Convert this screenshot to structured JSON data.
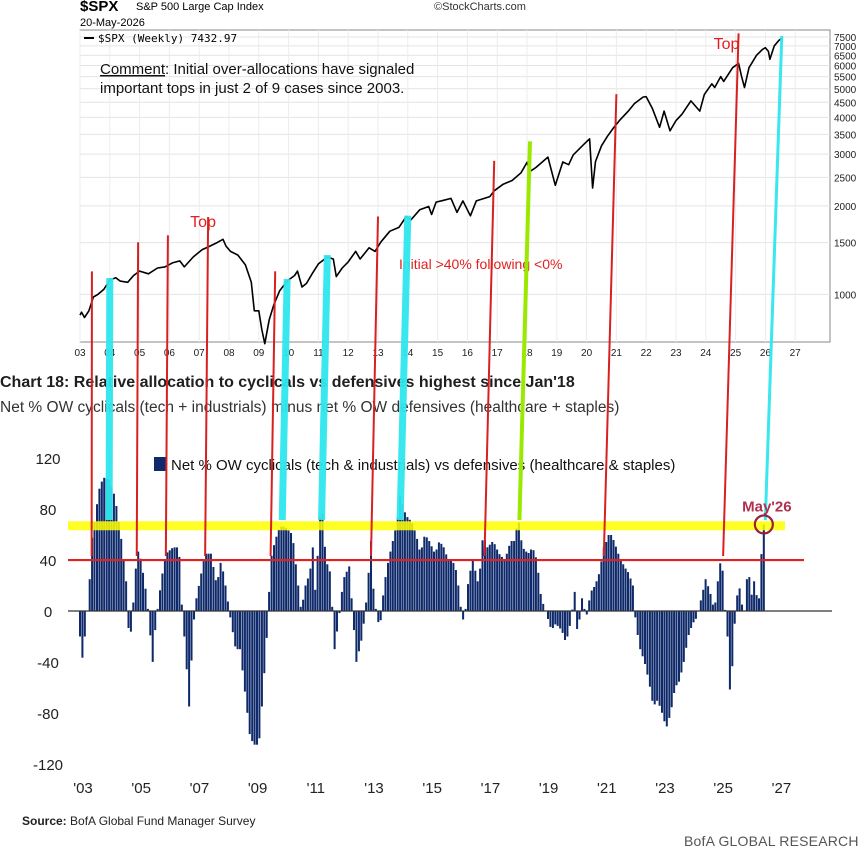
{
  "header": {
    "ticker": "$SPX",
    "name": "S&P 500 Large Cap Index",
    "date": "20-May-2026",
    "source": "©StockCharts.com"
  },
  "chart_data": [
    {
      "type": "line",
      "legend": "$SPX (Weekly) 7432.97",
      "log_scale": true,
      "ylim": [
        700,
        7800
      ],
      "y_ticks": [
        1000,
        1500,
        2000,
        2500,
        3000,
        3500,
        4000,
        4500,
        5000,
        5500,
        6000,
        6500,
        7000,
        7500
      ],
      "x_ticks": [
        "03",
        "04",
        "05",
        "06",
        "07",
        "08",
        "09",
        "10",
        "11",
        "12",
        "13",
        "14",
        "15",
        "16",
        "17",
        "18",
        "19",
        "20",
        "21",
        "22",
        "23",
        "24",
        "25",
        "26",
        "27"
      ],
      "x_range": [
        2003.0,
        2027.8
      ],
      "comment": {
        "label": "Comment",
        "text1": ": Initial over-allocations have signaled",
        "text2": "important tops in just 2 of 9 cases since 2003."
      },
      "annotations": [
        {
          "text": "Top",
          "x": 2007.1,
          "y": 1620
        },
        {
          "text": "Top",
          "x": 2025.0,
          "y": 7050
        },
        {
          "text": "Initial >40% following <0%",
          "x": 2018.1,
          "y": 1250
        }
      ],
      "points": [
        [
          2003.0,
          850
        ],
        [
          2003.05,
          870
        ],
        [
          2003.15,
          835
        ],
        [
          2003.3,
          880
        ],
        [
          2003.45,
          980
        ],
        [
          2003.6,
          1000
        ],
        [
          2003.8,
          1040
        ],
        [
          2004.0,
          1120
        ],
        [
          2004.2,
          1140
        ],
        [
          2004.35,
          1110
        ],
        [
          2004.6,
          1100
        ],
        [
          2004.8,
          1160
        ],
        [
          2005.0,
          1200
        ],
        [
          2005.3,
          1175
        ],
        [
          2005.6,
          1230
        ],
        [
          2005.85,
          1240
        ],
        [
          2006.1,
          1280
        ],
        [
          2006.35,
          1300
        ],
        [
          2006.5,
          1240
        ],
        [
          2006.8,
          1340
        ],
        [
          2007.1,
          1420
        ],
        [
          2007.3,
          1450
        ],
        [
          2007.6,
          1500
        ],
        [
          2007.8,
          1540
        ],
        [
          2007.9,
          1460
        ],
        [
          2008.05,
          1400
        ],
        [
          2008.3,
          1360
        ],
        [
          2008.55,
          1260
        ],
        [
          2008.75,
          1100
        ],
        [
          2008.85,
          880
        ],
        [
          2009.0,
          880
        ],
        [
          2009.1,
          760
        ],
        [
          2009.2,
          680
        ],
        [
          2009.35,
          820
        ],
        [
          2009.5,
          920
        ],
        [
          2009.7,
          1030
        ],
        [
          2009.95,
          1110
        ],
        [
          2010.2,
          1160
        ],
        [
          2010.3,
          1200
        ],
        [
          2010.45,
          1060
        ],
        [
          2010.6,
          1090
        ],
        [
          2010.8,
          1180
        ],
        [
          2011.0,
          1270
        ],
        [
          2011.3,
          1340
        ],
        [
          2011.5,
          1320
        ],
        [
          2011.6,
          1150
        ],
        [
          2011.8,
          1230
        ],
        [
          2012.0,
          1290
        ],
        [
          2012.25,
          1400
        ],
        [
          2012.4,
          1320
        ],
        [
          2012.7,
          1440
        ],
        [
          2012.9,
          1400
        ],
        [
          2013.1,
          1510
        ],
        [
          2013.4,
          1640
        ],
        [
          2013.7,
          1690
        ],
        [
          2013.95,
          1840
        ],
        [
          2014.1,
          1790
        ],
        [
          2014.4,
          1940
        ],
        [
          2014.7,
          1990
        ],
        [
          2014.8,
          1870
        ],
        [
          2014.95,
          2060
        ],
        [
          2015.2,
          2090
        ],
        [
          2015.45,
          2120
        ],
        [
          2015.65,
          1900
        ],
        [
          2015.85,
          2080
        ],
        [
          2016.1,
          1850
        ],
        [
          2016.3,
          2080
        ],
        [
          2016.5,
          2110
        ],
        [
          2016.75,
          2150
        ],
        [
          2016.9,
          2250
        ],
        [
          2017.2,
          2370
        ],
        [
          2017.5,
          2440
        ],
        [
          2017.8,
          2590
        ],
        [
          2018.0,
          2810
        ],
        [
          2018.1,
          2620
        ],
        [
          2018.3,
          2700
        ],
        [
          2018.7,
          2930
        ],
        [
          2018.95,
          2350
        ],
        [
          2019.2,
          2820
        ],
        [
          2019.4,
          2760
        ],
        [
          2019.55,
          2980
        ],
        [
          2019.9,
          3230
        ],
        [
          2020.1,
          3380
        ],
        [
          2020.2,
          2300
        ],
        [
          2020.3,
          2830
        ],
        [
          2020.5,
          3200
        ],
        [
          2020.7,
          3450
        ],
        [
          2020.9,
          3680
        ],
        [
          2021.1,
          3900
        ],
        [
          2021.4,
          4200
        ],
        [
          2021.6,
          4450
        ],
        [
          2021.9,
          4690
        ],
        [
          2022.0,
          4700
        ],
        [
          2022.2,
          4300
        ],
        [
          2022.45,
          3700
        ],
        [
          2022.6,
          4200
        ],
        [
          2022.8,
          3600
        ],
        [
          2023.0,
          3900
        ],
        [
          2023.2,
          4100
        ],
        [
          2023.5,
          4550
        ],
        [
          2023.8,
          4200
        ],
        [
          2023.95,
          4780
        ],
        [
          2024.2,
          5200
        ],
        [
          2024.3,
          5050
        ],
        [
          2024.5,
          5500
        ],
        [
          2024.6,
          5300
        ],
        [
          2024.9,
          5900
        ],
        [
          2025.1,
          6100
        ],
        [
          2025.2,
          5500
        ],
        [
          2025.3,
          5050
        ],
        [
          2025.45,
          5900
        ],
        [
          2025.7,
          6500
        ],
        [
          2025.9,
          6800
        ],
        [
          2026.0,
          6900
        ],
        [
          2026.1,
          6700
        ],
        [
          2026.15,
          6300
        ],
        [
          2026.3,
          7000
        ],
        [
          2026.45,
          7300
        ],
        [
          2026.55,
          7432.97
        ]
      ],
      "cyan_bands": [
        2004.0,
        2009.95,
        2011.3,
        2014.0,
        2026.55
      ],
      "red_lines": [
        2003.4,
        2004.95,
        2005.95,
        2007.3,
        2009.55,
        2013.0,
        2016.9,
        2021.0,
        2025.1
      ],
      "green_line": 2018.1
    },
    {
      "type": "bar",
      "title": "Chart 18: Relative allocation to cyclicals vs defensives highest since Jan'18",
      "subtitle": "Net % OW cyclicals (tech + industrials) minus net % OW defensives (healthcare + staples)",
      "series_name": "Net % OW cyclicals (tech & industrials) vs defensives (healthcare & staples)",
      "ylim": [
        -120,
        130
      ],
      "y_ticks": [
        120,
        80,
        40,
        0,
        -40,
        -80,
        -120
      ],
      "x_ticks": [
        "'03",
        "'05",
        "'07",
        "'09",
        "'11",
        "'13",
        "'15",
        "'17",
        "'19",
        "'21",
        "'23",
        "'25",
        "'27"
      ],
      "x_range": [
        2002.9,
        2027.2
      ],
      "thresholds": [
        {
          "value": 67,
          "color": "#ffff00"
        },
        {
          "value": 40,
          "color": "#e52020"
        }
      ],
      "annotation": {
        "text": "May'26",
        "x": 2026.5,
        "y": 68
      },
      "source_label": "Source:",
      "source_text": " BofA Global Fund Manager Survey",
      "brand": "BofA GLOBAL RESEARCH",
      "bar_color": "#0f2a6b",
      "anchors": [
        [
          2003.0,
          -20
        ],
        [
          2003.1,
          -40
        ],
        [
          2003.2,
          -10
        ],
        [
          2003.3,
          10
        ],
        [
          2003.4,
          55
        ],
        [
          2003.5,
          70
        ],
        [
          2003.65,
          95
        ],
        [
          2003.8,
          105
        ],
        [
          2004.0,
          103
        ],
        [
          2004.2,
          90
        ],
        [
          2004.4,
          60
        ],
        [
          2004.6,
          20
        ],
        [
          2004.7,
          -30
        ],
        [
          2004.9,
          25
        ],
        [
          2004.95,
          50
        ],
        [
          2005.1,
          40
        ],
        [
          2005.3,
          10
        ],
        [
          2005.5,
          -40
        ],
        [
          2005.6,
          -10
        ],
        [
          2005.8,
          25
        ],
        [
          2005.95,
          45
        ],
        [
          2006.2,
          50
        ],
        [
          2006.4,
          50
        ],
        [
          2006.5,
          5
        ],
        [
          2006.65,
          -40
        ],
        [
          2006.75,
          -75
        ],
        [
          2006.9,
          -10
        ],
        [
          2007.0,
          10
        ],
        [
          2007.3,
          45
        ],
        [
          2007.5,
          45
        ],
        [
          2007.7,
          20
        ],
        [
          2007.85,
          40
        ],
        [
          2008.0,
          20
        ],
        [
          2008.2,
          -10
        ],
        [
          2008.35,
          -30
        ],
        [
          2008.5,
          -30
        ],
        [
          2008.7,
          -70
        ],
        [
          2008.85,
          -100
        ],
        [
          2009.0,
          -105
        ],
        [
          2009.15,
          -105
        ],
        [
          2009.3,
          -60
        ],
        [
          2009.45,
          -10
        ],
        [
          2009.55,
          40
        ],
        [
          2009.7,
          55
        ],
        [
          2009.85,
          65
        ],
        [
          2009.95,
          67
        ],
        [
          2010.1,
          65
        ],
        [
          2010.3,
          60
        ],
        [
          2010.45,
          30
        ],
        [
          2010.6,
          0
        ],
        [
          2010.75,
          20
        ],
        [
          2010.9,
          30
        ],
        [
          2011.0,
          50
        ],
        [
          2011.1,
          10
        ],
        [
          2011.2,
          60
        ],
        [
          2011.3,
          87
        ],
        [
          2011.45,
          40
        ],
        [
          2011.6,
          30
        ],
        [
          2011.75,
          -30
        ],
        [
          2011.9,
          -5
        ],
        [
          2012.05,
          25
        ],
        [
          2012.25,
          35
        ],
        [
          2012.4,
          -10
        ],
        [
          2012.5,
          -40
        ],
        [
          2012.7,
          -20
        ],
        [
          2012.85,
          10
        ],
        [
          2013.0,
          55
        ],
        [
          2013.1,
          10
        ],
        [
          2013.3,
          -15
        ],
        [
          2013.45,
          20
        ],
        [
          2013.6,
          40
        ],
        [
          2013.75,
          55
        ],
        [
          2013.9,
          70
        ],
        [
          2014.0,
          90
        ],
        [
          2014.2,
          75
        ],
        [
          2014.4,
          70
        ],
        [
          2014.55,
          60
        ],
        [
          2014.7,
          45
        ],
        [
          2014.85,
          60
        ],
        [
          2015.0,
          55
        ],
        [
          2015.2,
          45
        ],
        [
          2015.35,
          55
        ],
        [
          2015.5,
          50
        ],
        [
          2015.65,
          40
        ],
        [
          2015.8,
          40
        ],
        [
          2015.95,
          30
        ],
        [
          2016.1,
          0
        ],
        [
          2016.2,
          -10
        ],
        [
          2016.35,
          25
        ],
        [
          2016.5,
          40
        ],
        [
          2016.7,
          20
        ],
        [
          2016.85,
          60
        ],
        [
          2017.0,
          50
        ],
        [
          2017.2,
          55
        ],
        [
          2017.4,
          45
        ],
        [
          2017.6,
          40
        ],
        [
          2017.8,
          55
        ],
        [
          2017.95,
          55
        ],
        [
          2018.05,
          75
        ],
        [
          2018.2,
          50
        ],
        [
          2018.4,
          45
        ],
        [
          2018.55,
          50
        ],
        [
          2018.7,
          40
        ],
        [
          2018.85,
          10
        ],
        [
          2019.0,
          0
        ],
        [
          2019.2,
          -15
        ],
        [
          2019.35,
          -10
        ],
        [
          2019.55,
          -15
        ],
        [
          2019.7,
          -25
        ],
        [
          2019.85,
          -10
        ],
        [
          2020.0,
          15
        ],
        [
          2020.1,
          -20
        ],
        [
          2020.25,
          10
        ],
        [
          2020.4,
          -5
        ],
        [
          2020.55,
          15
        ],
        [
          2020.7,
          20
        ],
        [
          2020.85,
          30
        ],
        [
          2021.0,
          50
        ],
        [
          2021.1,
          55
        ],
        [
          2021.2,
          62
        ],
        [
          2021.35,
          55
        ],
        [
          2021.5,
          45
        ],
        [
          2021.7,
          35
        ],
        [
          2021.85,
          30
        ],
        [
          2022.0,
          20
        ],
        [
          2022.1,
          -10
        ],
        [
          2022.25,
          -30
        ],
        [
          2022.4,
          -40
        ],
        [
          2022.55,
          -55
        ],
        [
          2022.7,
          -75
        ],
        [
          2022.85,
          -70
        ],
        [
          2023.0,
          -80
        ],
        [
          2023.15,
          -92
        ],
        [
          2023.3,
          -80
        ],
        [
          2023.45,
          -60
        ],
        [
          2023.6,
          -55
        ],
        [
          2023.75,
          -40
        ],
        [
          2023.9,
          -20
        ],
        [
          2024.05,
          -10
        ],
        [
          2024.2,
          -5
        ],
        [
          2024.35,
          10
        ],
        [
          2024.5,
          25
        ],
        [
          2024.65,
          15
        ],
        [
          2024.8,
          0
        ],
        [
          2024.95,
          30
        ],
        [
          2025.05,
          45
        ],
        [
          2025.15,
          5
        ],
        [
          2025.25,
          -20
        ],
        [
          2025.35,
          -70
        ],
        [
          2025.45,
          -30
        ],
        [
          2025.55,
          10
        ],
        [
          2025.7,
          20
        ],
        [
          2025.8,
          -10
        ],
        [
          2025.95,
          35
        ],
        [
          2026.1,
          10
        ],
        [
          2026.2,
          30
        ],
        [
          2026.3,
          -5
        ],
        [
          2026.4,
          40
        ],
        [
          2026.5,
          68
        ]
      ]
    }
  ]
}
